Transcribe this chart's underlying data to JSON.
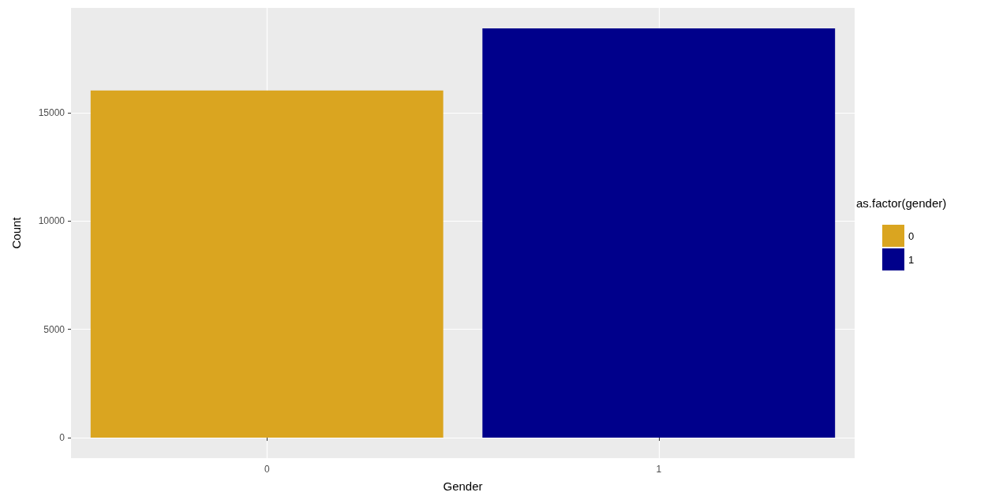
{
  "chart_data": {
    "type": "bar",
    "xlabel": "Gender",
    "ylabel": "Count",
    "legend_title": "as.factor(gender)",
    "categories": [
      "0",
      "1"
    ],
    "series": [
      {
        "name": "0",
        "color": "#daa520",
        "values": [
          16020,
          null
        ]
      },
      {
        "name": "1",
        "color": "#00008b",
        "values": [
          null,
          18890
        ]
      }
    ],
    "ylim": [
      -944,
      19834
    ],
    "yticks": [
      0,
      5000,
      10000,
      15000
    ],
    "grid": true,
    "legend": "right"
  }
}
